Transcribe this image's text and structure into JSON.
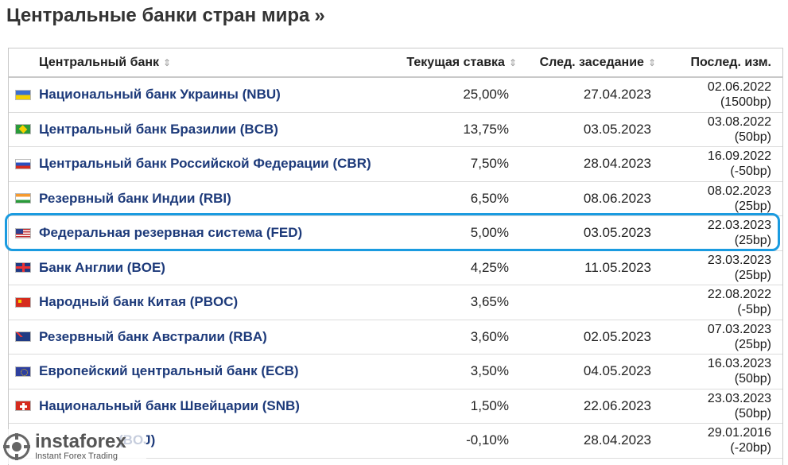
{
  "page": {
    "title": "Центральные банки стран мира",
    "title_suffix": "»"
  },
  "table": {
    "headers": {
      "bank": "Центральный банк",
      "rate": "Текущая ставка",
      "next": "След. заседание",
      "last": "Послед. изм."
    },
    "rows": [
      {
        "flag": "flag-ukraine-icon",
        "bank": "Национальный банк Украины (NBU)",
        "rate": "25,00%",
        "next": "27.04.2023",
        "last_date": "02.06.2022",
        "last_change": "(1500bp)"
      },
      {
        "flag": "flag-brazil-icon",
        "bank": "Центральный банк Бразилии (BCB)",
        "rate": "13,75%",
        "next": "03.05.2023",
        "last_date": "03.08.2022",
        "last_change": "(50bp)"
      },
      {
        "flag": "flag-russia-icon",
        "bank": "Центральный банк Российской Федерации (CBR)",
        "rate": "7,50%",
        "next": "28.04.2023",
        "last_date": "16.09.2022",
        "last_change": "(-50bp)"
      },
      {
        "flag": "flag-india-icon",
        "bank": "Резервный банк Индии (RBI)",
        "rate": "6,50%",
        "next": "08.06.2023",
        "last_date": "08.02.2023",
        "last_change": "(25bp)"
      },
      {
        "flag": "flag-usa-icon",
        "bank": "Федеральная резервная система (FED)",
        "rate": "5,00%",
        "next": "03.05.2023",
        "last_date": "22.03.2023",
        "last_change": "(25bp)"
      },
      {
        "flag": "flag-uk-icon",
        "bank": "Банк Англии (BOE)",
        "rate": "4,25%",
        "next": "11.05.2023",
        "last_date": "23.03.2023",
        "last_change": "(25bp)"
      },
      {
        "flag": "flag-china-icon",
        "bank": "Народный банк Китая (PBOC)",
        "rate": "3,65%",
        "next": "",
        "last_date": "22.08.2022",
        "last_change": "(-5bp)"
      },
      {
        "flag": "flag-australia-icon",
        "bank": "Резервный банк Австралии (RBA)",
        "rate": "3,60%",
        "next": "02.05.2023",
        "last_date": "07.03.2023",
        "last_change": "(25bp)"
      },
      {
        "flag": "flag-eu-icon",
        "bank": "Европейский центральный банк (ECB)",
        "rate": "3,50%",
        "next": "04.05.2023",
        "last_date": "16.03.2023",
        "last_change": "(50bp)"
      },
      {
        "flag": "flag-switzerland-icon",
        "bank": "Национальный банк Швейцарии (SNB)",
        "rate": "1,50%",
        "next": "22.06.2023",
        "last_date": "23.03.2023",
        "last_change": "(50bp)"
      },
      {
        "flag": "flag-japan-icon",
        "bank": "(BOJ)",
        "rate": "-0,10%",
        "next": "28.04.2023",
        "last_date": "29.01.2016",
        "last_change": "(-20bp)"
      }
    ]
  },
  "highlight": {
    "color": "#1a9be0"
  },
  "watermark": {
    "name": "instaforex",
    "tagline": "Instant Forex Trading"
  }
}
